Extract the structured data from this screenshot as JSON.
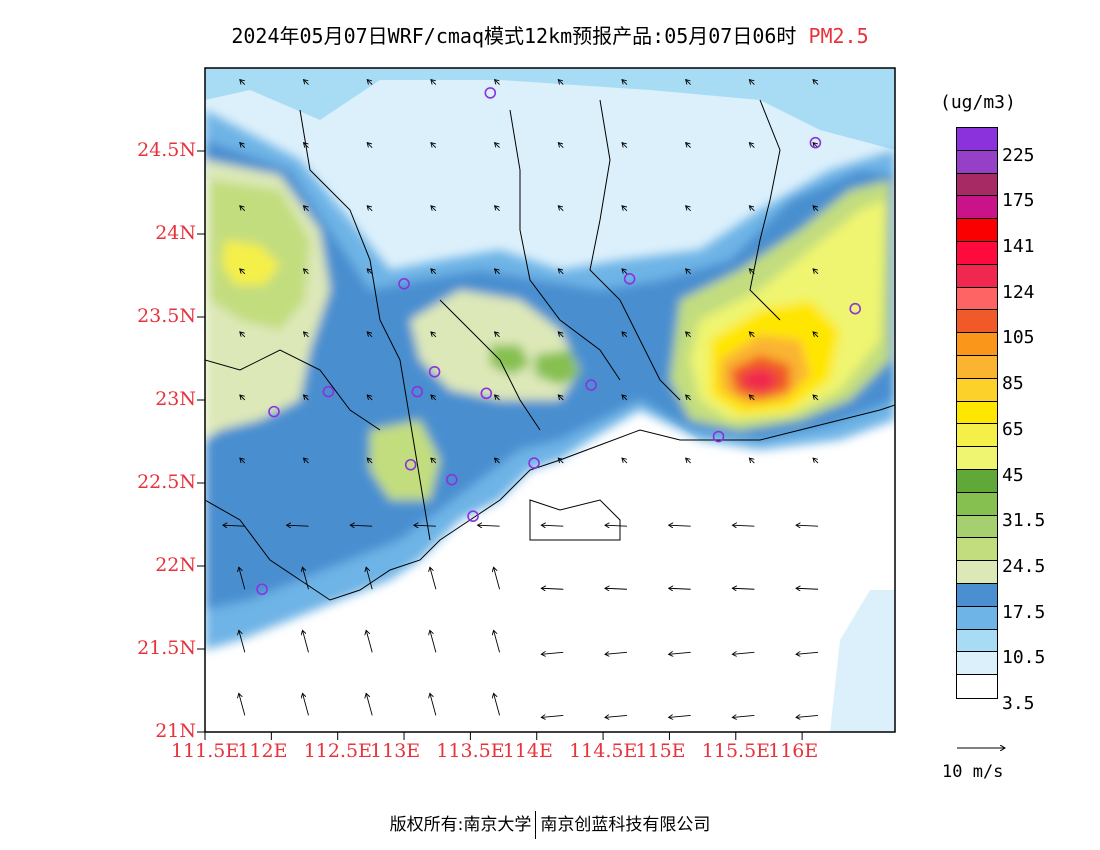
{
  "header": {
    "title": "2024年05月07日WRF/cmaq模式12km预报产品:05月07日06时",
    "variable": "PM2.5",
    "variable_color": "#e8323c"
  },
  "axes": {
    "lat_labels": [
      "24.5N",
      "24N",
      "23.5N",
      "23N",
      "22.5N",
      "22N",
      "21.5N",
      "21N"
    ],
    "lat_values": [
      24.5,
      24.0,
      23.5,
      23.0,
      22.5,
      22.0,
      21.5,
      21.0
    ],
    "lon_labels": [
      "111.5E",
      "112E",
      "112.5E",
      "113E",
      "113.5E",
      "114E",
      "114.5E",
      "115E",
      "115.5E",
      "116E"
    ],
    "lon_values": [
      111.5,
      112.0,
      112.5,
      113.0,
      113.5,
      114.0,
      114.5,
      115.0,
      115.5,
      116.0
    ],
    "lon_range": [
      111.5,
      116.7
    ],
    "lat_range": [
      21.0,
      25.0
    ],
    "label_color": "#e8323c"
  },
  "colorbar": {
    "unit": "(ug/m3)",
    "colors": [
      "#ffffff",
      "#dcf0fb",
      "#a8dcf5",
      "#6eb4e6",
      "#4a8fd0",
      "#dde8b8",
      "#c2dd7e",
      "#a6d070",
      "#86c050",
      "#60a838",
      "#eff570",
      "#f5ef4a",
      "#ffe600",
      "#fcd22a",
      "#fab432",
      "#fa9619",
      "#f05a28",
      "#ff6464",
      "#f02850",
      "#ff0a3c",
      "#fa0000",
      "#c81488",
      "#a82a64",
      "#9640c8",
      "#8c32dc"
    ],
    "labels": [
      "3.5",
      "10.5",
      "17.5",
      "24.5",
      "31.5",
      "45",
      "65",
      "85",
      "105",
      "124",
      "141",
      "175",
      "225"
    ]
  },
  "stations": [
    {
      "lon": 113.65,
      "lat": 24.85
    },
    {
      "lon": 116.1,
      "lat": 24.55
    },
    {
      "lon": 113.0,
      "lat": 23.7
    },
    {
      "lon": 114.7,
      "lat": 23.73
    },
    {
      "lon": 116.4,
      "lat": 23.55
    },
    {
      "lon": 112.43,
      "lat": 23.05
    },
    {
      "lon": 112.02,
      "lat": 22.93
    },
    {
      "lon": 113.23,
      "lat": 23.17
    },
    {
      "lon": 113.1,
      "lat": 23.05
    },
    {
      "lon": 113.62,
      "lat": 23.04
    },
    {
      "lon": 114.41,
      "lat": 23.09
    },
    {
      "lon": 113.05,
      "lat": 22.61
    },
    {
      "lon": 113.36,
      "lat": 22.52
    },
    {
      "lon": 113.98,
      "lat": 22.62
    },
    {
      "lon": 113.52,
      "lat": 22.3
    },
    {
      "lon": 115.37,
      "lat": 22.78
    },
    {
      "lon": 111.93,
      "lat": 21.86
    }
  ],
  "wind": {
    "reference_label": "10 m/s",
    "reference_speed": 10
  },
  "footer": {
    "left": "版权所有:南京大学",
    "right": "南京创蓝科技有限公司"
  }
}
